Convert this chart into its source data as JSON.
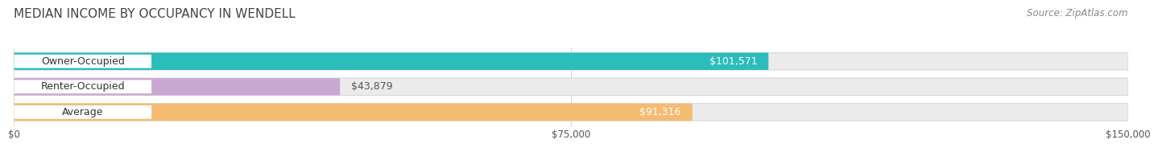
{
  "title": "MEDIAN INCOME BY OCCUPANCY IN WENDELL",
  "source": "Source: ZipAtlas.com",
  "categories": [
    "Owner-Occupied",
    "Renter-Occupied",
    "Average"
  ],
  "values": [
    101571,
    43879,
    91316
  ],
  "value_labels": [
    "$101,571",
    "$43,879",
    "$91,316"
  ],
  "bar_colors": [
    "#2bbcbc",
    "#c9a8d4",
    "#f5bb72"
  ],
  "track_color": "#ebebeb",
  "track_border": "#d8d8d8",
  "white_pill_color": "#ffffff",
  "xlim": [
    0,
    150000
  ],
  "xtick_vals": [
    0,
    75000,
    150000
  ],
  "xtick_labels": [
    "$0",
    "$75,000",
    "$150,000"
  ],
  "bg_color": "#ffffff",
  "title_fontsize": 11,
  "source_fontsize": 8.5,
  "label_fontsize": 9,
  "value_fontsize": 9,
  "value_color_dark": "#555555",
  "value_color_light": "#ffffff",
  "dark_threshold": 60000
}
